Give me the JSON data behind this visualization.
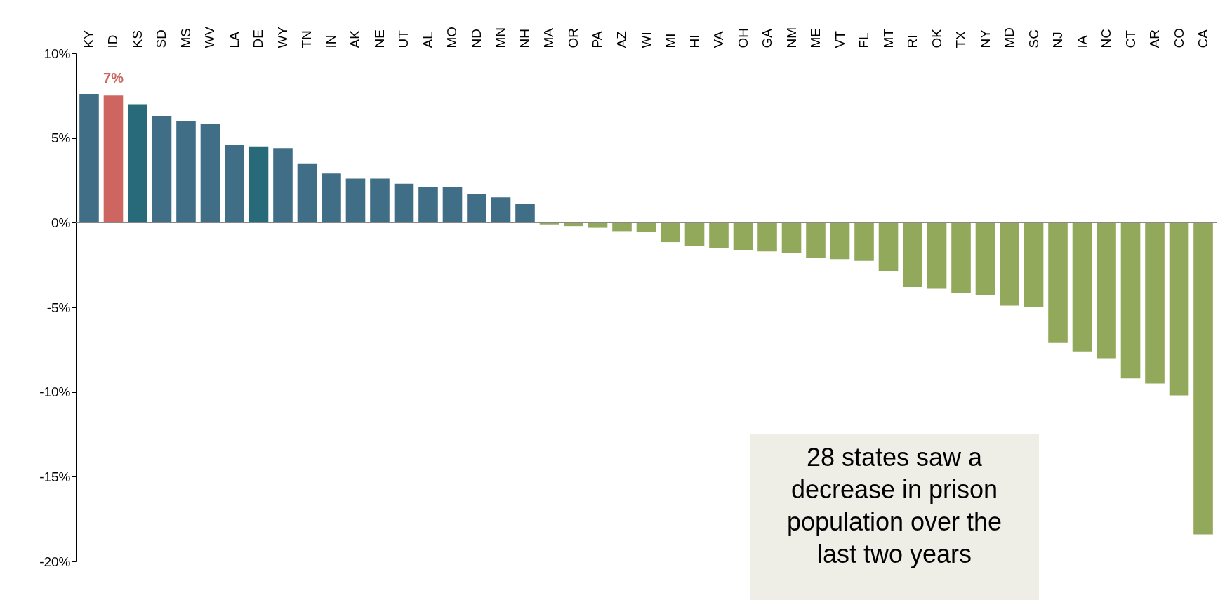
{
  "chart_data": {
    "type": "bar",
    "categories": [
      "KY",
      "ID",
      "KS",
      "SD",
      "MS",
      "WV",
      "LA",
      "DE",
      "WY",
      "TN",
      "IN",
      "AK",
      "NE",
      "UT",
      "AL",
      "MO",
      "ND",
      "MN",
      "NH",
      "MA",
      "OR",
      "PA",
      "AZ",
      "WI",
      "MI",
      "HI",
      "VA",
      "OH",
      "GA",
      "NM",
      "ME",
      "VT",
      "FL",
      "MT",
      "RI",
      "OK",
      "TX",
      "NY",
      "MD",
      "SC",
      "NJ",
      "IA",
      "NC",
      "CT",
      "AR",
      "CO",
      "CA"
    ],
    "values": [
      7.6,
      7.5,
      7.0,
      6.3,
      6.0,
      5.85,
      4.6,
      4.5,
      4.4,
      3.5,
      2.9,
      2.6,
      2.6,
      2.3,
      2.1,
      2.1,
      1.7,
      1.5,
      1.1,
      -0.1,
      -0.2,
      -0.3,
      -0.5,
      -0.55,
      -1.15,
      -1.35,
      -1.5,
      -1.6,
      -1.7,
      -1.8,
      -2.1,
      -2.15,
      -2.25,
      -2.85,
      -3.8,
      -3.9,
      -4.15,
      -4.3,
      -4.9,
      -5.0,
      -7.1,
      -7.6,
      -8.0,
      -9.2,
      -9.5,
      -10.2,
      -18.4
    ],
    "colors": [
      "#416e87",
      "#cd6661",
      "#296a7a",
      "#416e87",
      "#416e87",
      "#416e87",
      "#416e87",
      "#296a7a",
      "#416e87",
      "#416e87",
      "#416e87",
      "#416e87",
      "#416e87",
      "#416e87",
      "#416e87",
      "#416e87",
      "#416e87",
      "#416e87",
      "#416e87",
      "#92a85a",
      "#92a85a",
      "#92a85a",
      "#92a85a",
      "#92a85a",
      "#92a85a",
      "#92a85a",
      "#92a85a",
      "#92a85a",
      "#92a85a",
      "#92a85a",
      "#92a85a",
      "#92a85a",
      "#92a85a",
      "#92a85a",
      "#92a85a",
      "#92a85a",
      "#92a85a",
      "#92a85a",
      "#92a85a",
      "#92a85a",
      "#92a85a",
      "#92a85a",
      "#92a85a",
      "#92a85a",
      "#92a85a",
      "#92a85a",
      "#92a85a"
    ],
    "value_labels": [
      null,
      "7%",
      null,
      null,
      null,
      null,
      null,
      null,
      null,
      null,
      null,
      null,
      null,
      null,
      null,
      null,
      null,
      null,
      null,
      null,
      null,
      null,
      null,
      null,
      null,
      null,
      null,
      null,
      null,
      null,
      null,
      null,
      null,
      null,
      null,
      null,
      null,
      null,
      null,
      null,
      null,
      null,
      null,
      null,
      null,
      null,
      null
    ],
    "ylim": [
      -20,
      10
    ],
    "yticks": [
      {
        "value": 10,
        "label": "10%"
      },
      {
        "value": 5,
        "label": "5%"
      },
      {
        "value": 0,
        "label": "0%"
      },
      {
        "value": -5,
        "label": "-5%"
      },
      {
        "value": -10,
        "label": "-10%"
      },
      {
        "value": -15,
        "label": "-15%"
      },
      {
        "value": -20,
        "label": "-20%"
      }
    ],
    "annotations": [
      "28 states saw a\ndecrease in prison\npopulation over the\nlast two years"
    ]
  }
}
